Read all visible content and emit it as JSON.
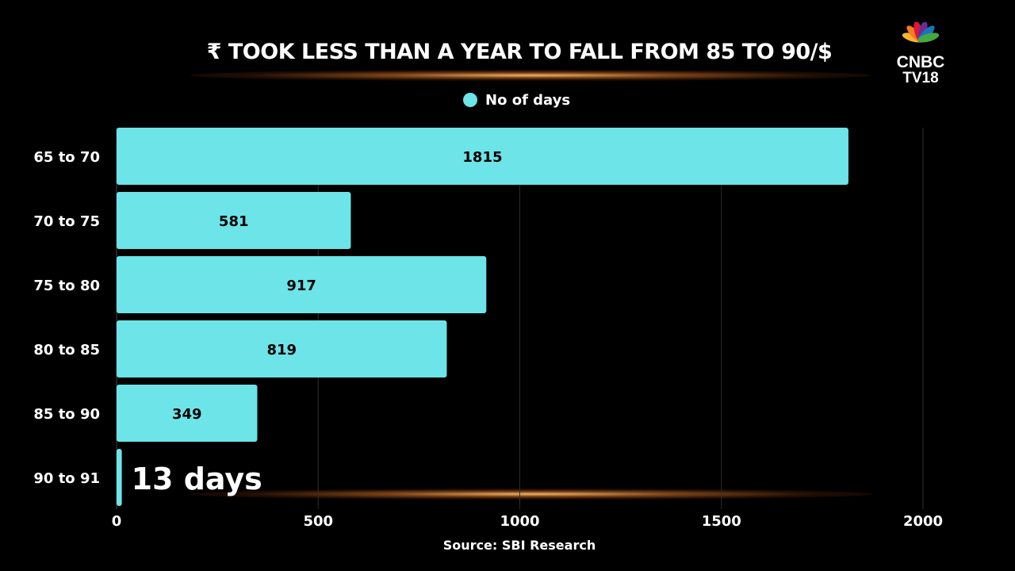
{
  "title": "₹ TOOK LESS THAN A YEAR TO FALL FROM 85 TO 90/$",
  "brand": {
    "line1": "CNBC",
    "line2": "TV18"
  },
  "legend": {
    "label": "No of days",
    "color": "#6ce4e8"
  },
  "source": "Source: SBI Research",
  "chart_data": {
    "type": "bar",
    "orientation": "horizontal",
    "categories": [
      "65 to 70",
      "70 to 75",
      "75 to 80",
      "80 to 85",
      "85 to 90",
      "90 to 91"
    ],
    "series": [
      {
        "name": "No of days",
        "values": [
          1815,
          581,
          917,
          819,
          349,
          13
        ],
        "color": "#6ce4e8"
      }
    ],
    "data_labels": [
      "1815",
      "581",
      "917",
      "819",
      "349",
      "13 days"
    ],
    "xlim": [
      0,
      2000
    ],
    "xticks": [
      "0",
      "500",
      "1000",
      "1500",
      "2000"
    ],
    "grid": true,
    "legend_position": "top"
  }
}
